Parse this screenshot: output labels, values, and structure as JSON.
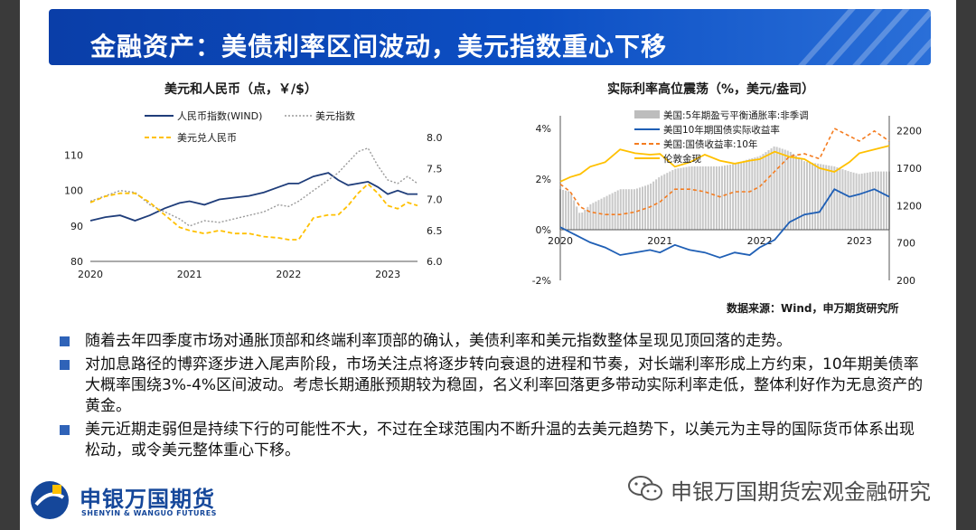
{
  "title": "金融资产：美债利率区间波动，美元指数重心下移",
  "charts": {
    "left": {
      "title": "美元和人民币（点，￥/$）",
      "legend": [
        "人民币指数(WIND)",
        "美元指数",
        "美元兑人民币"
      ],
      "left_ticks": [
        "110",
        "100",
        "90",
        "80"
      ],
      "right_ticks": [
        "8.0",
        "7.5",
        "7.0",
        "6.5",
        "6.0"
      ],
      "x_ticks": [
        "2020",
        "2021",
        "2022",
        "2023"
      ]
    },
    "right": {
      "title": "实际利率高位震荡（%，美元/盎司）",
      "legend": [
        "美国:5年期盈亏平衡通胀率:非季调",
        "美国10年期国债实际收益率",
        "美国:国债收益率:10年",
        "伦敦金现"
      ],
      "left_ticks": [
        "4%",
        "2%",
        "0%",
        "-2%"
      ],
      "right_ticks": [
        "2200",
        "1700",
        "1200",
        "700",
        "200"
      ],
      "x_ticks": [
        "2020",
        "2021",
        "2022",
        "2023"
      ]
    }
  },
  "chart_data": [
    {
      "type": "line",
      "title": "美元和人民币（点，￥/$）",
      "x": [
        2020.0,
        2020.15,
        2020.3,
        2020.45,
        2020.6,
        2020.75,
        2020.9,
        2021.0,
        2021.15,
        2021.3,
        2021.45,
        2021.6,
        2021.75,
        2021.9,
        2022.0,
        2022.1,
        2022.25,
        2022.4,
        2022.5,
        2022.6,
        2022.7,
        2022.8,
        2022.9,
        2023.0,
        2023.1,
        2023.2,
        2023.3
      ],
      "yaxis_left_range": [
        80,
        115
      ],
      "yaxis_right_range": [
        6.0,
        8.0
      ],
      "series": [
        {
          "name": "人民币指数(WIND)",
          "axis": "left",
          "values": [
            91.5,
            92.5,
            93,
            91.5,
            93,
            95,
            96.5,
            97,
            96,
            97.5,
            98,
            98.5,
            99.5,
            101,
            102,
            102,
            104,
            105,
            103,
            101.5,
            102,
            102.5,
            101,
            99,
            100,
            99,
            99
          ]
        },
        {
          "name": "美元指数",
          "axis": "left",
          "values": [
            97,
            98.5,
            100,
            99.5,
            96,
            94,
            92,
            90,
            91.5,
            91,
            92,
            93,
            94,
            96,
            95.5,
            97,
            100,
            103,
            105,
            108,
            111,
            112,
            107,
            103,
            102,
            104,
            102
          ]
        },
        {
          "name": "美元兑人民币",
          "axis": "right",
          "values": [
            6.95,
            7.05,
            7.1,
            7.1,
            6.95,
            6.75,
            6.55,
            6.5,
            6.45,
            6.5,
            6.45,
            6.45,
            6.4,
            6.38,
            6.35,
            6.35,
            6.7,
            6.75,
            6.75,
            6.9,
            7.1,
            7.25,
            7.1,
            6.9,
            6.85,
            6.95,
            6.9
          ]
        }
      ]
    },
    {
      "type": "line",
      "title": "实际利率高位震荡（%，美元/盎司）",
      "x": [
        2020.0,
        2020.1,
        2020.2,
        2020.3,
        2020.45,
        2020.6,
        2020.75,
        2020.9,
        2021.0,
        2021.15,
        2021.3,
        2021.45,
        2021.6,
        2021.75,
        2021.9,
        2022.0,
        2022.15,
        2022.3,
        2022.45,
        2022.6,
        2022.75,
        2022.9,
        2023.0,
        2023.15,
        2023.3
      ],
      "yaxis_left_range": [
        -2.0,
        4.5
      ],
      "yaxis_right_range": [
        200,
        2400
      ],
      "series": [
        {
          "name": "美国:5年期盈亏平衡通胀率:非季调",
          "axis": "left",
          "values": [
            1.6,
            1.5,
            0.6,
            1.0,
            1.3,
            1.6,
            1.6,
            1.8,
            2.1,
            2.4,
            2.5,
            2.5,
            2.5,
            2.6,
            2.8,
            2.9,
            3.3,
            3.1,
            2.7,
            2.6,
            2.5,
            2.3,
            2.2,
            2.3,
            2.3
          ]
        },
        {
          "name": "美国10年期国债实际收益率",
          "axis": "left",
          "values": [
            0.1,
            -0.1,
            -0.3,
            -0.5,
            -0.7,
            -1.0,
            -0.9,
            -0.8,
            -0.9,
            -0.6,
            -0.8,
            -0.9,
            -1.1,
            -0.9,
            -1.0,
            -0.7,
            -0.4,
            0.3,
            0.6,
            0.7,
            1.6,
            1.3,
            1.4,
            1.6,
            1.3
          ]
        },
        {
          "name": "美国:国债收益率:10年",
          "axis": "left",
          "values": [
            1.8,
            1.5,
            0.9,
            0.7,
            0.6,
            0.6,
            0.7,
            0.9,
            1.1,
            1.6,
            1.6,
            1.5,
            1.3,
            1.5,
            1.5,
            1.7,
            2.3,
            2.9,
            3.0,
            2.8,
            4.0,
            3.7,
            3.5,
            3.9,
            3.5
          ]
        },
        {
          "name": "伦敦金现",
          "axis": "right",
          "values": [
            1520,
            1580,
            1620,
            1720,
            1780,
            1950,
            1900,
            1880,
            1890,
            1720,
            1780,
            1880,
            1800,
            1760,
            1800,
            1820,
            1920,
            1850,
            1820,
            1700,
            1650,
            1780,
            1900,
            1950,
            2000
          ]
        }
      ]
    }
  ],
  "source": "数据来源：Wind，申万期货研究所",
  "bullets": [
    "随着去年四季度市场对通胀顶部和终端利率顶部的确认，美债利率和美元指数整体呈现见顶回落的走势。",
    "对加息路径的博弈逐步进入尾声阶段，市场关注点将逐步转向衰退的进程和节奏，对长端利率形成上方约束，10年期美债率大概率围绕3%-4%区间波动。考虑长期通胀预期较为稳固，名义利率回落更多带动实际利率走低，整体利好作为无息资产的黄金。",
    "美元近期走弱但是持续下行的可能性不大，不过在全球范围内不断升温的去美元趋势下，以美元为主导的国际货币体系出现松动，或令美元整体重心下移。"
  ],
  "logo": {
    "cn": "申银万国期货",
    "en": "SHENYIN & WANGUO FUTURES"
  },
  "watermark": "申银万国期货宏观金融研究",
  "colors": {
    "title_bar": "#0c4fc4",
    "navy": "#1f3d7a",
    "gold": "#ffc000",
    "gray_bars": "#bdbdbd",
    "orange": "#f47c20",
    "bullet": "#2f63b8"
  }
}
